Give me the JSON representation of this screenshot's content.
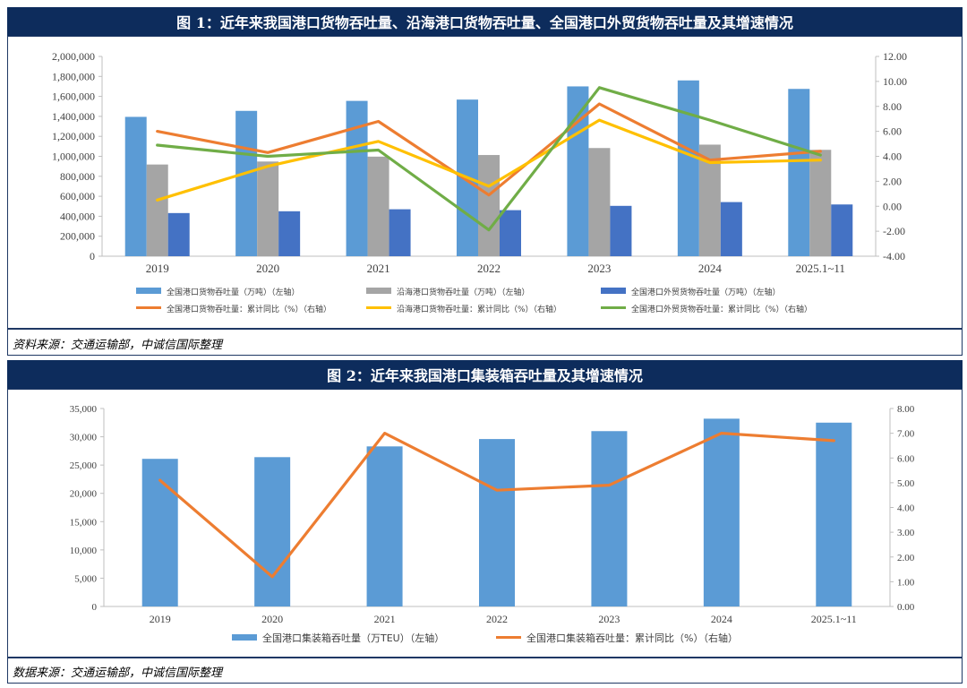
{
  "chart1": {
    "title": "图 1：近年来我国港口货物吞吐量、沿海港口货物吞吐量、全国港口外贸货物吞吐量及其增速情况",
    "source": "资料来源：交通运输部，中诚信国际整理"
  },
  "chart2": {
    "title": "图 2：近年来我国港口集装箱吞吐量及其增速情况",
    "source": "数据来源：交通运输部，中诚信国际整理"
  },
  "chart_data": [
    {
      "type": "bar",
      "title": "图 1：近年来我国港口货物吞吐量、沿海港口货物吞吐量、全国港口外贸货物吞吐量及其增速情况",
      "categories": [
        "2019",
        "2020",
        "2021",
        "2022",
        "2023",
        "2024",
        "2025.1~11"
      ],
      "y_left": {
        "min": 0,
        "max": 2000000,
        "step": 200000,
        "tick_labels": [
          "0",
          "200,000",
          "400,000",
          "600,000",
          "800,000",
          "1,000,000",
          "1,200,000",
          "1,400,000",
          "1,600,000",
          "1,800,000",
          "2,000,000"
        ]
      },
      "y_right": {
        "min": -4,
        "max": 12,
        "step": 2,
        "tick_labels": [
          "-4.00",
          "-2.00",
          "0.00",
          "2.00",
          "4.00",
          "6.00",
          "8.00",
          "10.00",
          "12.00"
        ]
      },
      "bar_series": [
        {
          "name": "全国港口货物吞吐量（万吨）（左轴）",
          "color": "#5b9bd5",
          "values": [
            1395000,
            1455000,
            1555000,
            1568000,
            1700000,
            1760000,
            1675000
          ]
        },
        {
          "name": "沿海港口货物吞吐量（万吨）（左轴）",
          "color": "#a5a5a5",
          "values": [
            918000,
            948000,
            997000,
            1013000,
            1083000,
            1117000,
            1065000
          ]
        },
        {
          "name": "全国港口外贸货物吞吐量（万吨）（左轴）",
          "color": "#4472c4",
          "values": [
            432000,
            450000,
            470000,
            461000,
            504000,
            542000,
            518000
          ]
        }
      ],
      "line_series": [
        {
          "name": "全国港口货物吞吐量：累计同比（%）（右轴）",
          "color": "#ed7d31",
          "values": [
            6.0,
            4.3,
            6.8,
            0.9,
            8.2,
            3.7,
            4.4
          ]
        },
        {
          "name": "沿海港口货物吞吐量：累计同比（%）（右轴）",
          "color": "#ffc000",
          "values": [
            0.5,
            3.2,
            5.2,
            1.6,
            6.9,
            3.5,
            3.7
          ]
        },
        {
          "name": "全国港口外贸货物吞吐量：累计同比（%）（右轴）",
          "color": "#70ad47",
          "values": [
            4.9,
            4.0,
            4.5,
            -1.9,
            9.5,
            6.9,
            4.1
          ]
        }
      ]
    },
    {
      "type": "bar",
      "title": "图 2：近年来我国港口集装箱吞吐量及其增速情况",
      "categories": [
        "2019",
        "2020",
        "2021",
        "2022",
        "2023",
        "2024",
        "2025.1~11"
      ],
      "y_left": {
        "min": 0,
        "max": 35000,
        "step": 5000,
        "tick_labels": [
          "0",
          "5,000",
          "10,000",
          "15,000",
          "20,000",
          "25,000",
          "30,000",
          "35,000"
        ]
      },
      "y_right": {
        "min": 0,
        "max": 8,
        "step": 1,
        "tick_labels": [
          "0.00",
          "1.00",
          "2.00",
          "3.00",
          "4.00",
          "5.00",
          "6.00",
          "7.00",
          "8.00"
        ]
      },
      "bar_series": [
        {
          "name": "全国港口集装箱吞吐量（万TEU）（左轴）",
          "color": "#5b9bd5",
          "values": [
            26100,
            26400,
            28300,
            29600,
            31000,
            33200,
            32500
          ]
        }
      ],
      "line_series": [
        {
          "name": "全国港口集装箱吞吐量：累计同比（%）（右轴）",
          "color": "#ed7d31",
          "values": [
            5.1,
            1.2,
            7.0,
            4.7,
            4.9,
            7.0,
            6.7
          ]
        }
      ]
    }
  ]
}
